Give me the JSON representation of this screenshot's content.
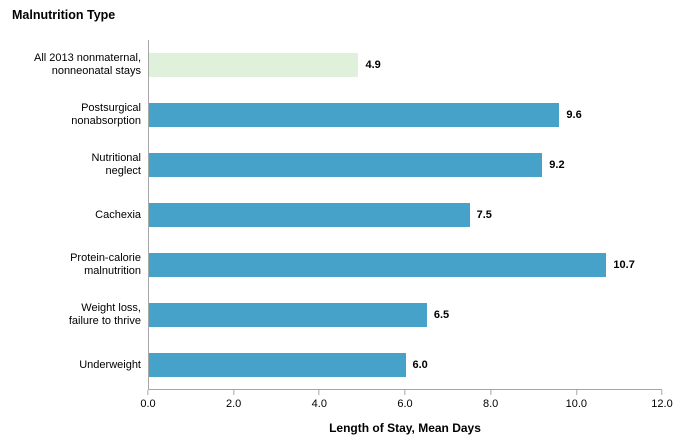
{
  "chart_data": {
    "type": "bar",
    "orientation": "horizontal",
    "title": "Malnutrition Type",
    "xlabel": "Length of Stay, Mean Days",
    "ylabel": "",
    "categories": [
      "All 2013 nonmaternal,\nnonneonatal stays",
      "Postsurgical\nnonabsorption",
      "Nutritional\nneglect",
      "Cachexia",
      "Protein-calorie\nmalnutrition",
      "Weight loss,\nfailure to thrive",
      "Underweight"
    ],
    "values": [
      4.9,
      9.6,
      9.2,
      7.5,
      10.7,
      6.5,
      6.0
    ],
    "value_labels": [
      "4.9",
      "9.6",
      "9.2",
      "7.5",
      "10.7",
      "6.5",
      "6.0"
    ],
    "bar_colors": [
      "#dff0db",
      "#46a2c8",
      "#46a2c8",
      "#46a2c8",
      "#46a2c8",
      "#46a2c8",
      "#46a2c8"
    ],
    "xlim": [
      0,
      12
    ],
    "x_ticks": [
      "0.0",
      "2.0",
      "4.0",
      "6.0",
      "8.0",
      "10.0",
      "12.0"
    ],
    "grid": false,
    "legend": null
  },
  "colors": {
    "bar_blue": "#46a2c8",
    "bar_highlight_green": "#dff0db",
    "axis_gray": "#a6a6a6",
    "text": "#000000"
  }
}
